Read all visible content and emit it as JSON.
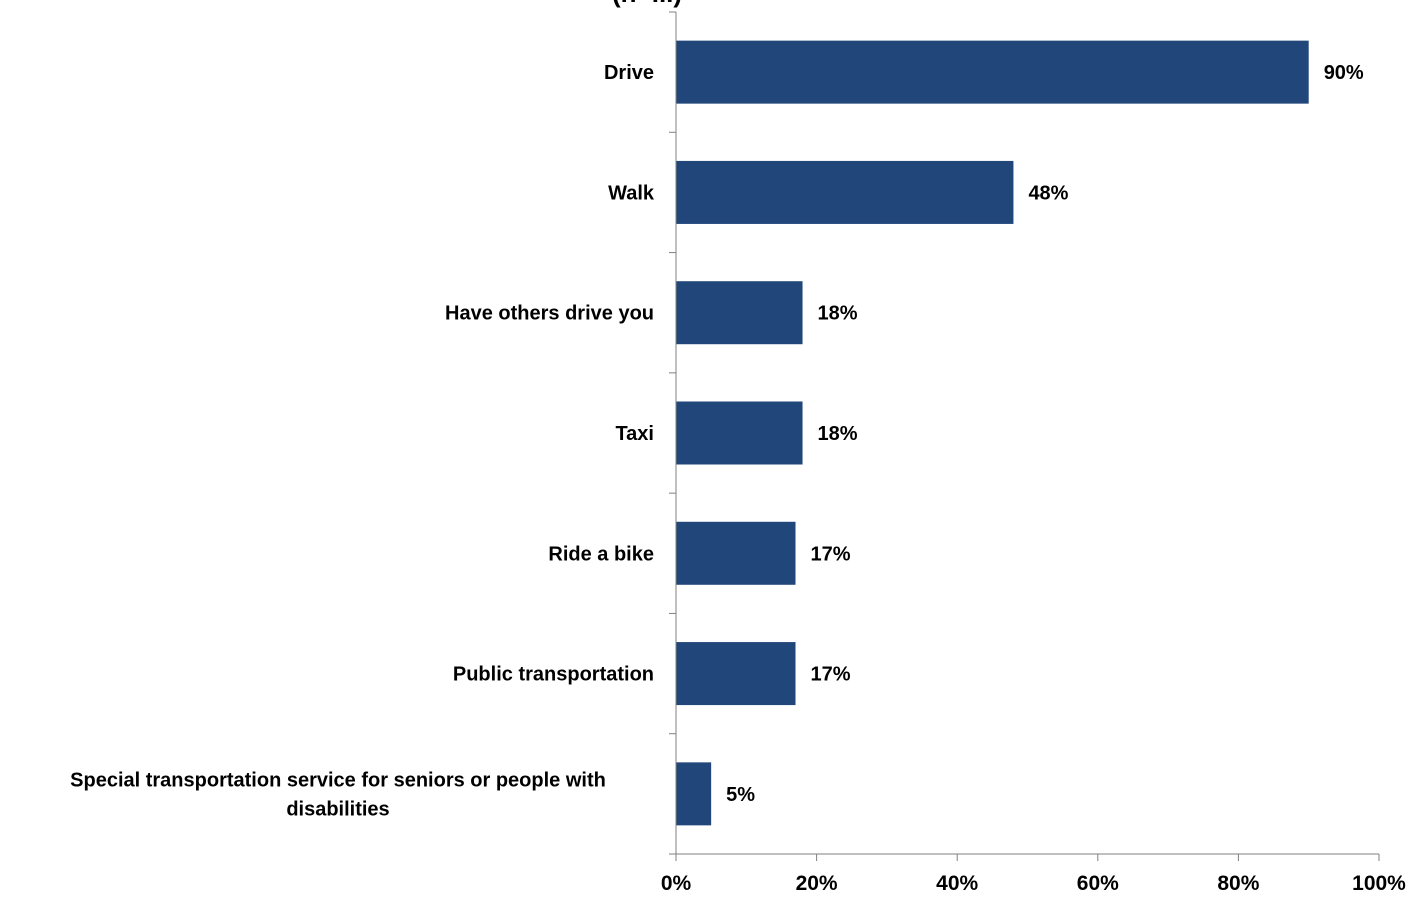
{
  "chart_data": {
    "type": "bar",
    "orientation": "horizontal",
    "title_fragment": "(n=...)",
    "categories": [
      [
        "Drive"
      ],
      [
        "Walk"
      ],
      [
        "Have others drive you"
      ],
      [
        "Taxi"
      ],
      [
        "Ride a bike"
      ],
      [
        "Public transportation"
      ],
      [
        "Special transportation service for seniors or people with",
        "disabilities"
      ]
    ],
    "values": [
      90,
      48,
      18,
      18,
      17,
      17,
      5
    ],
    "value_labels": [
      "90%",
      "48%",
      "18%",
      "18%",
      "17%",
      "17%",
      "5%"
    ],
    "xlim": [
      0,
      100
    ],
    "x_ticks": [
      0,
      20,
      40,
      60,
      80,
      100
    ],
    "x_tick_labels": [
      "0%",
      "20%",
      "40%",
      "60%",
      "80%",
      "100%"
    ],
    "xlabel": "",
    "ylabel": "",
    "grid": false,
    "legend": "none",
    "bar_color": "#21467A",
    "axis_color": "#808080"
  }
}
